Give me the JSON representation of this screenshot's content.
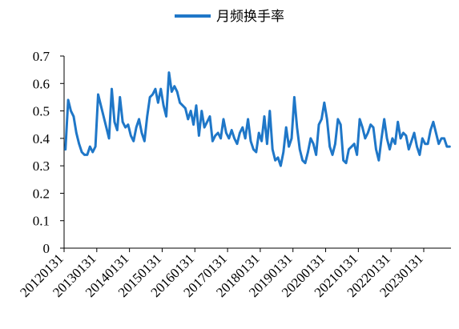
{
  "chart_data": {
    "type": "line",
    "legend": {
      "position": "top-center",
      "entries": [
        "月频换手率"
      ]
    },
    "colors": {
      "series": "#1F77C8",
      "axis": "#000000"
    },
    "xlabel": "",
    "ylabel": "",
    "ylim": [
      0,
      0.7
    ],
    "y_ticks": [
      0,
      0.1,
      0.2,
      0.3,
      0.4,
      0.5,
      0.6,
      0.7
    ],
    "y_tick_labels": [
      "0",
      "0.1",
      "0.2",
      "0.3",
      "0.4",
      "0.5",
      "0.6",
      "0.7"
    ],
    "x_tick_labels": [
      "20120131",
      "20130131",
      "20140131",
      "20150131",
      "20160131",
      "20170131",
      "20180131",
      "20190131",
      "20200131",
      "20210131",
      "20220131",
      "20230131"
    ],
    "x_start": "2012-01",
    "grid": false,
    "series": [
      {
        "name": "月频换手率",
        "values": [
          0.36,
          0.54,
          0.5,
          0.48,
          0.42,
          0.38,
          0.35,
          0.34,
          0.34,
          0.37,
          0.35,
          0.37,
          0.56,
          0.52,
          0.48,
          0.44,
          0.4,
          0.58,
          0.46,
          0.43,
          0.55,
          0.46,
          0.44,
          0.45,
          0.41,
          0.39,
          0.44,
          0.47,
          0.42,
          0.39,
          0.48,
          0.55,
          0.56,
          0.58,
          0.53,
          0.58,
          0.52,
          0.48,
          0.64,
          0.57,
          0.59,
          0.57,
          0.53,
          0.52,
          0.51,
          0.47,
          0.5,
          0.45,
          0.52,
          0.41,
          0.5,
          0.44,
          0.46,
          0.48,
          0.39,
          0.41,
          0.42,
          0.4,
          0.47,
          0.42,
          0.4,
          0.43,
          0.4,
          0.38,
          0.42,
          0.44,
          0.4,
          0.47,
          0.39,
          0.36,
          0.35,
          0.42,
          0.39,
          0.48,
          0.38,
          0.5,
          0.36,
          0.32,
          0.33,
          0.3,
          0.35,
          0.44,
          0.37,
          0.4,
          0.55,
          0.44,
          0.36,
          0.32,
          0.31,
          0.35,
          0.4,
          0.38,
          0.34,
          0.45,
          0.47,
          0.53,
          0.47,
          0.37,
          0.34,
          0.38,
          0.47,
          0.45,
          0.32,
          0.31,
          0.36,
          0.37,
          0.38,
          0.34,
          0.47,
          0.44,
          0.4,
          0.42,
          0.45,
          0.44,
          0.36,
          0.32,
          0.4,
          0.47,
          0.4,
          0.36,
          0.4,
          0.38,
          0.46,
          0.4,
          0.42,
          0.41,
          0.36,
          0.39,
          0.42,
          0.37,
          0.34,
          0.4,
          0.38,
          0.38,
          0.43,
          0.46,
          0.42,
          0.38,
          0.4,
          0.4,
          0.37,
          0.37
        ]
      }
    ]
  }
}
